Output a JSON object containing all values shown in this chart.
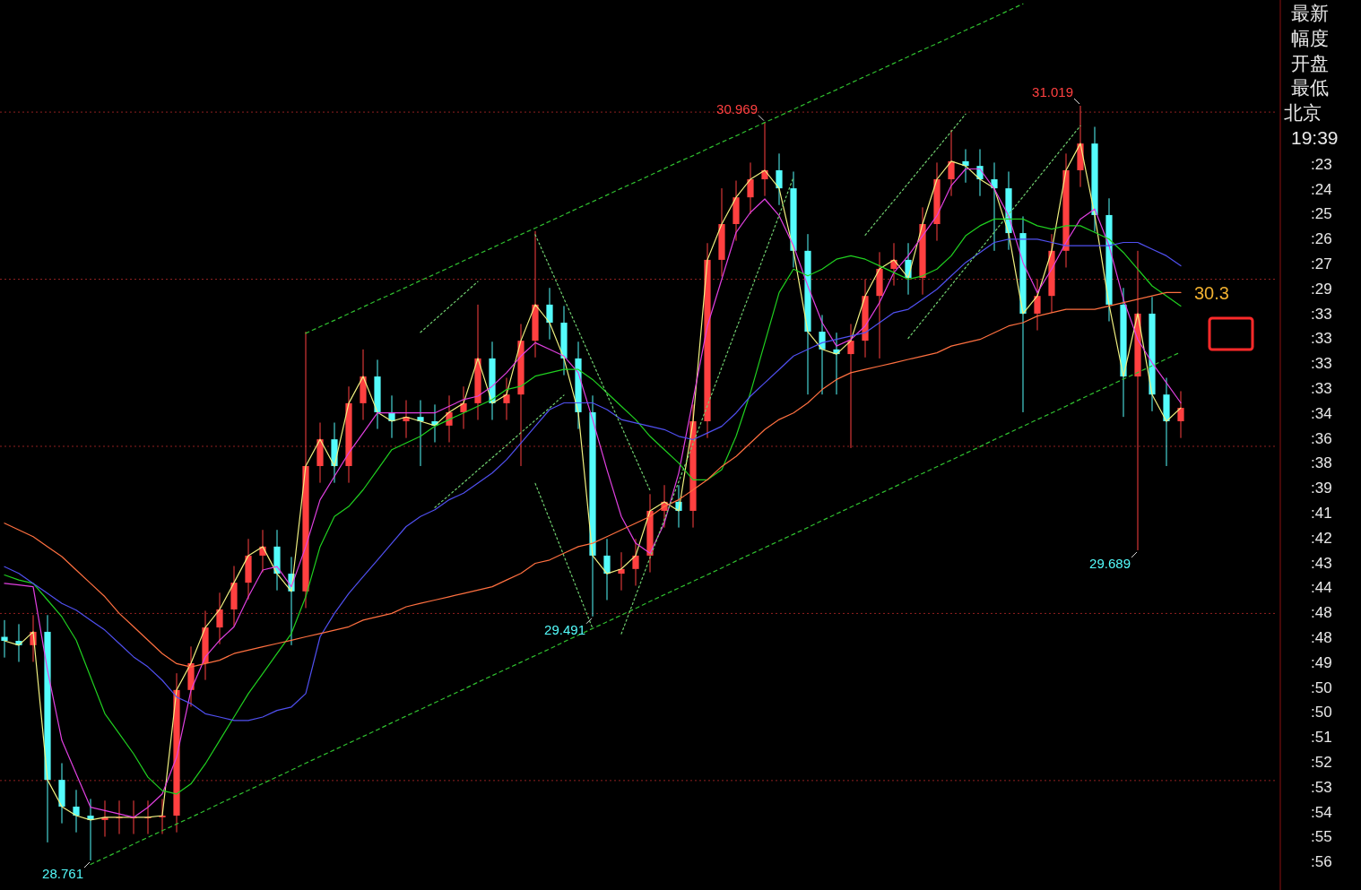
{
  "chart_data": {
    "type": "candlestick",
    "categories": [
      null,
      null,
      null,
      null,
      null,
      null,
      null,
      null,
      null,
      null,
      null,
      null,
      null,
      null,
      null,
      null,
      null,
      null,
      null,
      null,
      null,
      null,
      null,
      null,
      null,
      null,
      null,
      null,
      null,
      null,
      null,
      null,
      null,
      null,
      null,
      null,
      null,
      null,
      null,
      null,
      null,
      null,
      null,
      null,
      null,
      null,
      null,
      null,
      null,
      null,
      null,
      null,
      null,
      null,
      null,
      null,
      null,
      null,
      null,
      null,
      null,
      null,
      null,
      null,
      null,
      null,
      null,
      null,
      null,
      null,
      null,
      null,
      null,
      null,
      null,
      null,
      null,
      null,
      null,
      null,
      null,
      null,
      null
    ],
    "ohlc": [
      [
        29.43,
        29.48,
        29.368,
        29.418
      ],
      [
        29.418,
        29.468,
        29.355,
        29.405
      ],
      [
        29.405,
        29.495,
        29.355,
        29.445
      ],
      [
        29.445,
        29.495,
        28.815,
        29.002
      ],
      [
        29.002,
        29.052,
        28.872,
        28.922
      ],
      [
        28.922,
        28.972,
        28.845,
        28.895
      ],
      [
        28.895,
        28.945,
        28.761,
        28.882
      ],
      [
        28.882,
        28.94,
        28.832,
        28.89
      ],
      [
        28.89,
        28.94,
        28.84,
        28.89
      ],
      [
        28.89,
        28.94,
        28.84,
        28.89
      ],
      [
        28.89,
        28.94,
        28.84,
        28.89
      ],
      [
        28.89,
        28.945,
        28.84,
        28.895
      ],
      [
        28.895,
        29.321,
        28.845,
        29.271
      ],
      [
        29.271,
        29.401,
        29.221,
        29.351
      ],
      [
        29.351,
        29.508,
        29.301,
        29.458
      ],
      [
        29.458,
        29.562,
        29.408,
        29.512
      ],
      [
        29.512,
        29.642,
        29.462,
        29.592
      ],
      [
        29.592,
        29.723,
        29.542,
        29.673
      ],
      [
        29.673,
        29.75,
        29.623,
        29.7
      ],
      [
        29.7,
        29.75,
        29.569,
        29.619
      ],
      [
        29.619,
        29.669,
        29.405,
        29.566
      ],
      [
        29.566,
        30.343,
        29.516,
        29.941
      ],
      [
        29.941,
        30.071,
        29.891,
        30.021
      ],
      [
        30.021,
        30.071,
        29.891,
        29.941
      ],
      [
        29.941,
        30.179,
        29.891,
        30.129
      ],
      [
        30.129,
        30.29,
        30.079,
        30.209
      ],
      [
        30.209,
        30.259,
        30.052,
        30.102
      ],
      [
        30.102,
        30.152,
        30.025,
        30.075
      ],
      [
        30.075,
        30.138,
        30.025,
        30.088
      ],
      [
        30.088,
        30.138,
        29.941,
        30.075
      ],
      [
        30.075,
        30.125,
        30.012,
        30.062
      ],
      [
        30.062,
        30.152,
        30.012,
        30.102
      ],
      [
        30.102,
        30.179,
        30.052,
        30.129
      ],
      [
        30.129,
        30.424,
        30.079,
        30.263
      ],
      [
        30.263,
        30.313,
        30.079,
        30.129
      ],
      [
        30.129,
        30.205,
        30.079,
        30.155
      ],
      [
        30.155,
        30.366,
        29.941,
        30.316
      ],
      [
        30.316,
        30.644,
        30.266,
        30.424
      ],
      [
        30.424,
        30.474,
        30.32,
        30.37
      ],
      [
        30.37,
        30.42,
        30.213,
        30.263
      ],
      [
        30.263,
        30.313,
        30.052,
        30.102
      ],
      [
        30.102,
        30.152,
        29.491,
        29.673
      ],
      [
        29.673,
        29.723,
        29.54,
        29.619
      ],
      [
        29.619,
        29.683,
        29.569,
        29.633
      ],
      [
        29.633,
        29.723,
        29.583,
        29.673
      ],
      [
        29.673,
        29.857,
        29.623,
        29.807
      ],
      [
        29.807,
        29.884,
        29.757,
        29.834
      ],
      [
        29.834,
        29.884,
        29.757,
        29.807
      ],
      [
        29.807,
        30.125,
        29.757,
        30.075
      ],
      [
        30.075,
        30.608,
        30.025,
        30.558
      ],
      [
        30.558,
        30.772,
        30.508,
        30.665
      ],
      [
        30.665,
        30.795,
        30.615,
        30.745
      ],
      [
        30.745,
        30.849,
        30.695,
        30.799
      ],
      [
        30.799,
        30.969,
        30.749,
        30.826
      ],
      [
        30.826,
        30.876,
        30.722,
        30.772
      ],
      [
        30.772,
        30.822,
        30.535,
        30.585
      ],
      [
        30.585,
        30.635,
        30.155,
        30.343
      ],
      [
        30.343,
        30.393,
        30.155,
        30.29
      ],
      [
        30.29,
        30.34,
        30.155,
        30.276
      ],
      [
        30.276,
        30.366,
        29.995,
        30.316
      ],
      [
        30.316,
        30.5,
        30.266,
        30.45
      ],
      [
        30.45,
        30.581,
        30.263,
        30.531
      ],
      [
        30.531,
        30.608,
        30.481,
        30.558
      ],
      [
        30.558,
        30.608,
        30.454,
        30.504
      ],
      [
        30.504,
        30.715,
        30.454,
        30.665
      ],
      [
        30.665,
        30.849,
        30.615,
        30.799
      ],
      [
        30.799,
        30.947,
        30.749,
        30.853
      ],
      [
        30.853,
        30.889,
        30.789,
        30.839
      ],
      [
        30.839,
        30.889,
        30.749,
        30.799
      ],
      [
        30.799,
        30.849,
        30.585,
        30.772
      ],
      [
        30.772,
        30.822,
        30.588,
        30.638
      ],
      [
        30.638,
        30.688,
        30.102,
        30.397
      ],
      [
        30.397,
        30.5,
        30.347,
        30.45
      ],
      [
        30.45,
        30.635,
        30.4,
        30.585
      ],
      [
        30.585,
        30.876,
        30.535,
        30.826
      ],
      [
        30.826,
        31.019,
        30.776,
        30.906
      ],
      [
        30.906,
        30.956,
        30.642,
        30.692
      ],
      [
        30.692,
        30.742,
        30.374,
        30.424
      ],
      [
        30.424,
        30.474,
        30.088,
        30.209
      ],
      [
        30.209,
        30.585,
        29.689,
        30.397
      ],
      [
        30.397,
        30.447,
        30.105,
        30.155
      ],
      [
        30.155,
        30.205,
        29.941,
        30.075
      ],
      [
        30.075,
        30.165,
        30.025,
        30.115
      ]
    ],
    "colors": [
      "#54fcfc",
      "#54fcfc",
      "#ff4040",
      "#54fcfc",
      "#54fcfc",
      "#54fcfc",
      "#54fcfc",
      "#ff4040",
      "#ff4040",
      "#ff4040",
      "#ff4040",
      "#ff4040",
      "#ff4040",
      "#ff4040",
      "#ff4040",
      "#ff4040",
      "#ff4040",
      "#ff4040",
      "#ff4040",
      "#54fcfc",
      "#54fcfc",
      "#ff4040",
      "#ff4040",
      "#54fcfc",
      "#ff4040",
      "#ff4040",
      "#54fcfc",
      "#54fcfc",
      "#ff4040",
      "#54fcfc",
      "#54fcfc",
      "#ff4040",
      "#ff4040",
      "#ff4040",
      "#54fcfc",
      "#ff4040",
      "#ff4040",
      "#ff4040",
      "#54fcfc",
      "#54fcfc",
      "#54fcfc",
      "#54fcfc",
      "#54fcfc",
      "#ff4040",
      "#ff4040",
      "#ff4040",
      "#ff4040",
      "#54fcfc",
      "#ff4040",
      "#ff4040",
      "#ff4040",
      "#ff4040",
      "#ff4040",
      "#ff4040",
      "#54fcfc",
      "#54fcfc",
      "#54fcfc",
      "#54fcfc",
      "#54fcfc",
      "#ff4040",
      "#ff4040",
      "#ff4040",
      "#ff4040",
      "#54fcfc",
      "#ff4040",
      "#ff4040",
      "#ff4040",
      "#54fcfc",
      "#54fcfc",
      "#54fcfc",
      "#54fcfc",
      "#54fcfc",
      "#ff4040",
      "#ff4040",
      "#ff4040",
      "#ff4040",
      "#54fcfc",
      "#54fcfc",
      "#54fcfc",
      "#ff4040",
      "#54fcfc",
      "#54fcfc",
      "#ff4040"
    ],
    "series": [
      {
        "type": "line",
        "color": "#f0f080",
        "values": [
          29.418,
          29.405,
          29.445,
          29.002,
          28.922,
          28.895,
          28.882,
          28.89,
          28.89,
          28.89,
          28.89,
          28.895,
          29.271,
          29.351,
          29.458,
          29.512,
          29.592,
          29.673,
          29.7,
          29.619,
          29.566,
          29.941,
          30.021,
          29.941,
          30.129,
          30.209,
          30.102,
          30.075,
          30.088,
          30.075,
          30.062,
          30.102,
          30.129,
          30.263,
          30.129,
          30.155,
          30.316,
          30.424,
          30.37,
          30.263,
          30.102,
          29.673,
          29.619,
          29.633,
          29.673,
          29.807,
          29.834,
          29.807,
          30.075,
          30.558,
          30.665,
          30.745,
          30.799,
          30.826,
          30.772,
          30.585,
          30.343,
          30.29,
          30.276,
          30.316,
          30.45,
          30.531,
          30.558,
          30.504,
          30.665,
          30.799,
          30.853,
          30.839,
          30.799,
          30.772,
          30.638,
          30.397,
          30.45,
          30.585,
          30.826,
          30.906,
          30.692,
          30.424,
          30.209,
          30.397,
          30.155,
          30.075,
          30.115
        ]
      },
      {
        "type": "line",
        "color": "#e040e0",
        "values": [
          29.59,
          29.585,
          29.58,
          29.33,
          29.12,
          29.02,
          28.92,
          28.91,
          28.9,
          28.89,
          28.92,
          28.96,
          29.07,
          29.27,
          29.37,
          29.42,
          29.46,
          29.55,
          29.63,
          29.64,
          29.58,
          29.7,
          29.84,
          29.91,
          29.98,
          30.04,
          30.1,
          30.1,
          30.1,
          30.1,
          30.1,
          30.12,
          30.14,
          30.15,
          30.18,
          30.22,
          30.27,
          30.31,
          30.29,
          30.27,
          30.22,
          30.08,
          29.93,
          29.79,
          29.71,
          29.68,
          29.77,
          29.92,
          30.14,
          30.36,
          30.5,
          30.64,
          30.7,
          30.74,
          30.69,
          30.6,
          30.48,
          30.37,
          30.3,
          30.32,
          30.36,
          30.43,
          30.52,
          30.57,
          30.63,
          30.69,
          30.78,
          30.83,
          30.83,
          30.77,
          30.69,
          30.55,
          30.46,
          30.53,
          30.61,
          30.68,
          30.71,
          30.6,
          30.44,
          30.32,
          30.25,
          30.19,
          30.13
        ]
      },
      {
        "type": "line",
        "color": "#20d020",
        "values": [
          29.615,
          29.6,
          29.59,
          29.54,
          29.49,
          29.42,
          29.31,
          29.2,
          29.14,
          29.08,
          29.01,
          28.97,
          28.96,
          28.99,
          29.05,
          29.12,
          29.19,
          29.26,
          29.32,
          29.38,
          29.44,
          29.55,
          29.7,
          29.79,
          29.82,
          29.87,
          29.93,
          29.99,
          30.01,
          30.03,
          30.06,
          30.08,
          30.1,
          30.12,
          30.14,
          30.17,
          30.18,
          30.21,
          30.22,
          30.23,
          30.23,
          30.2,
          30.16,
          30.12,
          30.08,
          30.03,
          29.99,
          29.95,
          29.9,
          29.9,
          29.93,
          30.03,
          30.16,
          30.31,
          30.46,
          30.53,
          30.51,
          30.53,
          30.56,
          30.57,
          30.56,
          30.54,
          30.52,
          30.5,
          30.51,
          30.53,
          30.57,
          30.63,
          30.66,
          30.68,
          30.68,
          30.68,
          30.66,
          30.65,
          30.66,
          30.66,
          30.64,
          30.62,
          30.58,
          30.53,
          30.48,
          30.45,
          30.42
        ]
      },
      {
        "type": "line",
        "color": "#5050f0",
        "values": [
          29.64,
          29.62,
          29.59,
          29.56,
          29.53,
          29.51,
          29.48,
          29.45,
          29.41,
          29.37,
          29.34,
          29.3,
          29.25,
          29.23,
          29.2,
          29.19,
          29.18,
          29.18,
          29.19,
          29.21,
          29.22,
          29.26,
          29.43,
          29.5,
          29.56,
          29.61,
          29.66,
          29.71,
          29.76,
          29.79,
          29.81,
          29.84,
          29.86,
          29.89,
          29.92,
          29.96,
          30.01,
          30.06,
          30.11,
          30.13,
          30.13,
          30.13,
          30.11,
          30.08,
          30.07,
          30.06,
          30.05,
          30.03,
          30.02,
          30.04,
          30.06,
          30.1,
          30.15,
          30.19,
          30.23,
          30.27,
          30.29,
          30.31,
          30.32,
          30.33,
          30.34,
          30.37,
          30.4,
          30.41,
          30.44,
          30.47,
          30.51,
          30.55,
          30.58,
          30.61,
          30.62,
          30.62,
          30.62,
          30.61,
          30.6,
          30.6,
          30.6,
          30.6,
          30.61,
          30.61,
          30.59,
          30.57,
          30.54
        ]
      },
      {
        "type": "line",
        "color": "#ff7040",
        "values": [
          29.77,
          29.75,
          29.73,
          29.7,
          29.67,
          29.63,
          29.59,
          29.55,
          29.5,
          29.46,
          29.42,
          29.38,
          29.35,
          29.34,
          29.35,
          29.36,
          29.38,
          29.39,
          29.4,
          29.41,
          29.42,
          29.43,
          29.44,
          29.45,
          29.46,
          29.48,
          29.49,
          29.5,
          29.52,
          29.53,
          29.54,
          29.55,
          29.56,
          29.57,
          29.58,
          29.6,
          29.62,
          29.65,
          29.66,
          29.68,
          29.7,
          29.71,
          29.73,
          29.75,
          29.77,
          29.79,
          29.82,
          29.84,
          29.87,
          29.9,
          29.94,
          29.97,
          30.01,
          30.05,
          30.08,
          30.1,
          30.13,
          30.17,
          30.2,
          30.22,
          30.23,
          30.24,
          30.25,
          30.26,
          30.27,
          30.28,
          30.3,
          30.31,
          30.32,
          30.34,
          30.36,
          30.37,
          30.39,
          30.4,
          30.41,
          30.41,
          30.41,
          30.42,
          30.43,
          30.44,
          30.45,
          30.46,
          30.46
        ]
      },
      {
        "type": "line",
        "color": "#30c030",
        "line_style": "dashed",
        "values": [
          null,
          null,
          null,
          null,
          null,
          null,
          null,
          null,
          null,
          null,
          null,
          null,
          null,
          null,
          null,
          null,
          null,
          null,
          null,
          null,
          null,
          30.338,
          30.358,
          30.377,
          30.397,
          30.417,
          30.437,
          30.456,
          30.476,
          30.496,
          30.515,
          30.535,
          30.555,
          30.575,
          30.594,
          30.614,
          30.634,
          30.653,
          30.673,
          30.693,
          30.713,
          30.732,
          30.752,
          30.772,
          30.791,
          30.811,
          30.831,
          30.851,
          30.87,
          30.89,
          30.91,
          30.929,
          30.949,
          30.969,
          30.988,
          31.008,
          31.028,
          31.048,
          31.067,
          31.087,
          31.107,
          31.126,
          31.146,
          31.166,
          31.186,
          31.205,
          31.225,
          31.245,
          31.264,
          31.284,
          31.304,
          31.324,
          null,
          null,
          null,
          null,
          null,
          null,
          null,
          null,
          null,
          null,
          null
        ]
      },
      {
        "type": "line",
        "color": "#30c030",
        "line_style": "dashed",
        "values": [
          null,
          null,
          null,
          null,
          null,
          null,
          28.749,
          28.769,
          28.789,
          28.81,
          28.83,
          28.85,
          28.87,
          28.89,
          28.91,
          28.931,
          28.951,
          28.971,
          28.991,
          29.011,
          29.031,
          29.052,
          29.072,
          29.092,
          29.112,
          29.132,
          29.152,
          29.173,
          29.193,
          29.213,
          29.233,
          29.253,
          29.273,
          29.294,
          29.314,
          29.334,
          29.354,
          29.374,
          29.394,
          29.415,
          29.435,
          29.455,
          29.475,
          29.495,
          29.515,
          29.536,
          29.556,
          29.576,
          29.596,
          29.616,
          29.636,
          29.657,
          29.677,
          29.697,
          29.717,
          29.737,
          29.757,
          29.778,
          29.798,
          29.818,
          29.838,
          29.858,
          29.878,
          29.899,
          29.919,
          29.939,
          29.959,
          29.979,
          29.999,
          30.02,
          30.04,
          30.06,
          30.08,
          30.1,
          30.12,
          30.141,
          30.161,
          30.181,
          30.201,
          30.221,
          30.241,
          30.262,
          30.282
        ]
      },
      {
        "type": "line",
        "color": "#70d070",
        "line_style": "dotted",
        "values": [
          null,
          null,
          null,
          null,
          null,
          null,
          null,
          null,
          null,
          null,
          null,
          null,
          null,
          null,
          null,
          null,
          null,
          null,
          null,
          null,
          null,
          null,
          null,
          null,
          null,
          null,
          null,
          null,
          null,
          null,
          null,
          null,
          null,
          null,
          null,
          null,
          null,
          30.633,
          30.538,
          30.442,
          30.347,
          30.251,
          30.155,
          30.06,
          29.964,
          29.868,
          null,
          null,
          null,
          null,
          null,
          null,
          null,
          null,
          null,
          null,
          null,
          null,
          null,
          null,
          null,
          null,
          null,
          null,
          null,
          null,
          null,
          null,
          null,
          null,
          null,
          null,
          null,
          null,
          null,
          null,
          null,
          null,
          null,
          null,
          null,
          null,
          null
        ]
      },
      {
        "type": "line",
        "color": "#70d070",
        "line_style": "dotted",
        "values": [
          null,
          null,
          null,
          null,
          null,
          null,
          null,
          null,
          null,
          null,
          null,
          null,
          null,
          null,
          null,
          null,
          null,
          null,
          null,
          null,
          null,
          null,
          null,
          null,
          null,
          null,
          null,
          null,
          null,
          null,
          null,
          null,
          null,
          null,
          null,
          null,
          null,
          29.889,
          29.781,
          29.672,
          29.563,
          29.455,
          null,
          null,
          null,
          null,
          null,
          null,
          null,
          null,
          null,
          null,
          null,
          null,
          null,
          null,
          null,
          null,
          null,
          null,
          null,
          null,
          null,
          null,
          null,
          null,
          null,
          null,
          null,
          null,
          null,
          null,
          null,
          null,
          null,
          null,
          null,
          null,
          null,
          null,
          null,
          null,
          null
        ]
      },
      {
        "type": "line",
        "color": "#70d070",
        "line_style": "dotted",
        "values": [
          null,
          null,
          null,
          null,
          null,
          null,
          null,
          null,
          null,
          null,
          null,
          null,
          null,
          null,
          null,
          null,
          null,
          null,
          null,
          null,
          null,
          null,
          null,
          null,
          null,
          null,
          null,
          null,
          null,
          30.341,
          30.379,
          30.417,
          30.455,
          30.493,
          null,
          null,
          null,
          null,
          null,
          null,
          null,
          null,
          null,
          null,
          null,
          null,
          null,
          null,
          null,
          null,
          null,
          null,
          null,
          null,
          null,
          null,
          null,
          null,
          null,
          null,
          null,
          null,
          null,
          null,
          null,
          null,
          null,
          null,
          null,
          null,
          null,
          null,
          null,
          null,
          null,
          null,
          null,
          null,
          null,
          null,
          null,
          null,
          null
        ]
      },
      {
        "type": "line",
        "color": "#70d070",
        "line_style": "dotted",
        "values": [
          null,
          null,
          null,
          null,
          null,
          null,
          null,
          null,
          null,
          null,
          null,
          null,
          null,
          null,
          null,
          null,
          null,
          null,
          null,
          null,
          null,
          null,
          null,
          null,
          null,
          null,
          null,
          null,
          null,
          null,
          29.817,
          29.854,
          29.891,
          29.929,
          29.966,
          30.003,
          30.041,
          30.078,
          30.115,
          30.153,
          null,
          null,
          null,
          null,
          null,
          null,
          null,
          null,
          null,
          null,
          null,
          null,
          null,
          null,
          null,
          null,
          null,
          null,
          null,
          null,
          null,
          null,
          null,
          null,
          null,
          null,
          null,
          null,
          null,
          null,
          null,
          null,
          null,
          null,
          null,
          null,
          null,
          null,
          null,
          null,
          null,
          null,
          null
        ]
      },
      {
        "type": "line",
        "color": "#70d070",
        "line_style": "dotted",
        "values": [
          null,
          null,
          null,
          null,
          null,
          null,
          null,
          null,
          null,
          null,
          null,
          null,
          null,
          null,
          null,
          null,
          null,
          null,
          null,
          null,
          null,
          null,
          null,
          null,
          null,
          null,
          null,
          null,
          null,
          null,
          null,
          null,
          null,
          null,
          null,
          null,
          null,
          null,
          null,
          null,
          null,
          null,
          null,
          29.439,
          29.553,
          29.667,
          29.781,
          29.894,
          30.008,
          30.122,
          30.236,
          30.35,
          30.463,
          30.577,
          30.691,
          30.805,
          null,
          null,
          null,
          null,
          null,
          null,
          null,
          null,
          null,
          null,
          null,
          null,
          null,
          null,
          null,
          null,
          null,
          null,
          null,
          null,
          null,
          null,
          null,
          null,
          null,
          null,
          null
        ]
      },
      {
        "type": "line",
        "color": "#70d070",
        "line_style": "dotted",
        "values": [
          null,
          null,
          null,
          null,
          null,
          null,
          null,
          null,
          null,
          null,
          null,
          null,
          null,
          null,
          null,
          null,
          null,
          null,
          null,
          null,
          null,
          null,
          null,
          null,
          null,
          null,
          null,
          null,
          null,
          null,
          null,
          null,
          null,
          null,
          null,
          null,
          null,
          null,
          null,
          null,
          null,
          null,
          null,
          null,
          null,
          null,
          null,
          null,
          null,
          null,
          null,
          null,
          null,
          null,
          null,
          null,
          null,
          null,
          null,
          null,
          30.632,
          30.684,
          30.735,
          30.787,
          30.839,
          30.89,
          30.942,
          30.994,
          null,
          null,
          null,
          null,
          null,
          null,
          null,
          null,
          null,
          null,
          null,
          null,
          null,
          null,
          null
        ]
      },
      {
        "type": "line",
        "color": "#70d070",
        "line_style": "dotted",
        "values": [
          null,
          null,
          null,
          null,
          null,
          null,
          null,
          null,
          null,
          null,
          null,
          null,
          null,
          null,
          null,
          null,
          null,
          null,
          null,
          null,
          null,
          null,
          null,
          null,
          null,
          null,
          null,
          null,
          null,
          null,
          null,
          null,
          null,
          null,
          null,
          null,
          null,
          null,
          null,
          null,
          null,
          null,
          null,
          null,
          null,
          null,
          null,
          null,
          null,
          null,
          null,
          null,
          null,
          null,
          null,
          null,
          null,
          null,
          null,
          null,
          null,
          null,
          null,
          30.323,
          30.376,
          30.429,
          30.482,
          30.535,
          30.588,
          30.641,
          30.694,
          30.747,
          30.8,
          30.853,
          30.906,
          30.959,
          null,
          null,
          null,
          null,
          null,
          null,
          null
        ]
      }
    ],
    "ref_lines": [
      {
        "axis": "y",
        "value": 31.0,
        "color": "#902020",
        "line_style": "dotted"
      },
      {
        "axis": "y",
        "value": 30.5,
        "color": "#902020",
        "line_style": "dotted"
      },
      {
        "axis": "y",
        "value": 30.0,
        "color": "#902020",
        "line_style": "dotted"
      },
      {
        "axis": "y",
        "value": 29.5,
        "color": "#902020",
        "line_style": "dotted"
      },
      {
        "axis": "y",
        "value": 29.0,
        "color": "#902020",
        "line_style": "dotted"
      }
    ],
    "annotations": [
      "30.969",
      "31.019",
      "29.491",
      "29.689",
      "28.761",
      "30.3",
      "最新",
      "幅度",
      "开盘",
      "最低",
      "北京",
      "19:39",
      ":23",
      ":24",
      ":25",
      ":26",
      ":27",
      ":29",
      ":33",
      ":33",
      ":33",
      ":33",
      ":34",
      ":36",
      ":38",
      ":39",
      ":41",
      ":42",
      ":43",
      ":44",
      ":48",
      ":48",
      ":49",
      ":50",
      ":50",
      ":51",
      ":52",
      ":53",
      ":54",
      ":55",
      ":56"
    ]
  }
}
